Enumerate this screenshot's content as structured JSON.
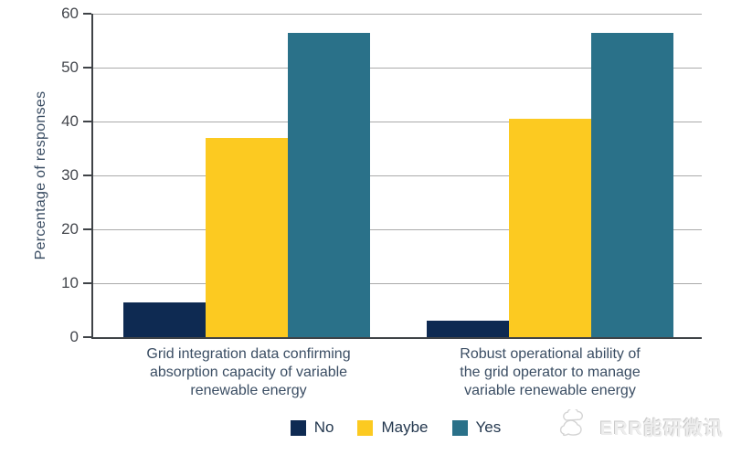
{
  "chart_data": {
    "type": "bar",
    "title": "",
    "xlabel": "",
    "ylabel": "Percentage of responses",
    "ylim": [
      0,
      60
    ],
    "yticks": [
      0,
      10,
      20,
      30,
      40,
      50,
      60
    ],
    "grid": true,
    "legend_position": "bottom",
    "categories": [
      "Grid integration data confirming absorption capacity of variable renewable energy",
      "Robust operational ability of the grid operator to manage variable renewable energy"
    ],
    "category_display_lines": [
      [
        "Grid integration data confirming",
        "absorption capacity of variable",
        "renewable energy"
      ],
      [
        "Robust operational ability of",
        "the grid operator to manage",
        "variable renewable energy"
      ]
    ],
    "series": [
      {
        "name": "No",
        "color": "#0e2a52",
        "values": [
          6.5,
          3
        ]
      },
      {
        "name": "Maybe",
        "color": "#fcca21",
        "values": [
          37,
          40.5
        ]
      },
      {
        "name": "Yes",
        "color": "#2a7189",
        "values": [
          56.5,
          56.5
        ]
      }
    ],
    "colors": {
      "axis": "#3f4347",
      "gridline": "#ababab",
      "tick_text": "#44474d",
      "label_text": "#3a4d63"
    }
  },
  "watermark": {
    "text": "ERR能研微讯",
    "icon": "cloud-chat-logo"
  }
}
